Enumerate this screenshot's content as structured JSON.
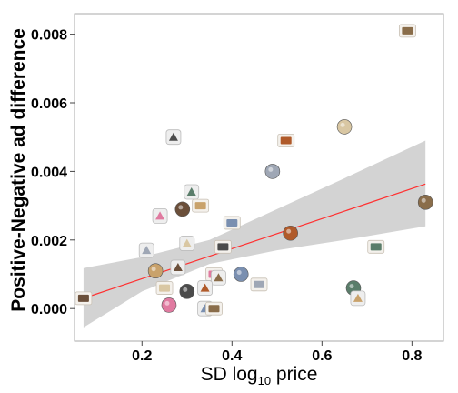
{
  "chart_data": {
    "type": "scatter",
    "xlabel_main": "SD log",
    "xlabel_sub": "10",
    "xlabel_end": " price",
    "ylabel": "Positive-Negative ad difference",
    "xlim": [
      0.05,
      0.87
    ],
    "ylim": [
      -0.00095,
      0.0086
    ],
    "x_ticks": [
      0.2,
      0.4,
      0.6,
      0.8
    ],
    "x_tick_labels": [
      "0.2",
      "0.4",
      "0.6",
      "0.8"
    ],
    "y_ticks": [
      0.0,
      0.002,
      0.004,
      0.006,
      0.008
    ],
    "y_tick_labels": [
      "0.000",
      "0.002",
      "0.004",
      "0.006",
      "0.008"
    ],
    "grid": false,
    "marker_style": "product thumbnail images",
    "points": [
      {
        "x": 0.79,
        "y": 0.0081,
        "icon": "pink-purse-icon"
      },
      {
        "x": 0.65,
        "y": 0.0053,
        "icon": "bowl-icon"
      },
      {
        "x": 0.27,
        "y": 0.005,
        "icon": "adirondack-chair-icon"
      },
      {
        "x": 0.52,
        "y": 0.0049,
        "icon": "binoculars-icon"
      },
      {
        "x": 0.49,
        "y": 0.004,
        "icon": "box-cutter-icon"
      },
      {
        "x": 0.31,
        "y": 0.0034,
        "icon": "printer-icon"
      },
      {
        "x": 0.33,
        "y": 0.003,
        "icon": "football-icon"
      },
      {
        "x": 0.29,
        "y": 0.0029,
        "icon": "tripod-icon"
      },
      {
        "x": 0.24,
        "y": 0.0027,
        "icon": "camera-icon"
      },
      {
        "x": 0.4,
        "y": 0.0025,
        "icon": "baseball-icon"
      },
      {
        "x": 0.83,
        "y": 0.0031,
        "icon": "golf-club-icon"
      },
      {
        "x": 0.3,
        "y": 0.0019,
        "icon": "laptop-icon"
      },
      {
        "x": 0.38,
        "y": 0.0018,
        "icon": "cellphone-icon"
      },
      {
        "x": 0.53,
        "y": 0.0022,
        "icon": "scanner-icon"
      },
      {
        "x": 0.21,
        "y": 0.0017,
        "icon": "scissors-icon"
      },
      {
        "x": 0.72,
        "y": 0.0018,
        "icon": "faucet-icon"
      },
      {
        "x": 0.23,
        "y": 0.0011,
        "icon": "shopping-cart-icon"
      },
      {
        "x": 0.28,
        "y": 0.0012,
        "icon": "wine-rack-icon"
      },
      {
        "x": 0.36,
        "y": 0.001,
        "icon": "mailbox-icon"
      },
      {
        "x": 0.42,
        "y": 0.001,
        "icon": "clothes-icon"
      },
      {
        "x": 0.37,
        "y": 0.0009,
        "icon": "chair-icon"
      },
      {
        "x": 0.25,
        "y": 0.0006,
        "icon": "stroller-icon"
      },
      {
        "x": 0.3,
        "y": 0.0005,
        "icon": "shirt-icon"
      },
      {
        "x": 0.34,
        "y": 0.0006,
        "icon": "shoe-icon"
      },
      {
        "x": 0.46,
        "y": 0.0007,
        "icon": "round-rug-icon"
      },
      {
        "x": 0.67,
        "y": 0.0006,
        "icon": "sunglasses-icon"
      },
      {
        "x": 0.68,
        "y": 0.0003,
        "icon": "fishing-rod-icon"
      },
      {
        "x": 0.07,
        "y": 0.0003,
        "icon": "cake-icon"
      },
      {
        "x": 0.26,
        "y": 0.0001,
        "icon": "pool-table-icon"
      },
      {
        "x": 0.34,
        "y": 0.0,
        "icon": "dartboard-icon"
      },
      {
        "x": 0.36,
        "y": 0.0,
        "icon": "dish-icon"
      }
    ],
    "fit_line": {
      "x": [
        0.07,
        0.83
      ],
      "y": [
        0.0003,
        0.00363
      ],
      "color": "#ff3030"
    },
    "confidence_band": {
      "x": [
        0.07,
        0.2,
        0.35,
        0.5,
        0.65,
        0.83
      ],
      "lower": [
        -0.00055,
        0.0005,
        0.0013,
        0.0017,
        0.002,
        0.0024
      ],
      "upper": [
        0.00118,
        0.0015,
        0.002,
        0.0029,
        0.0038,
        0.0049
      ],
      "color": "#d3d3d3"
    }
  }
}
